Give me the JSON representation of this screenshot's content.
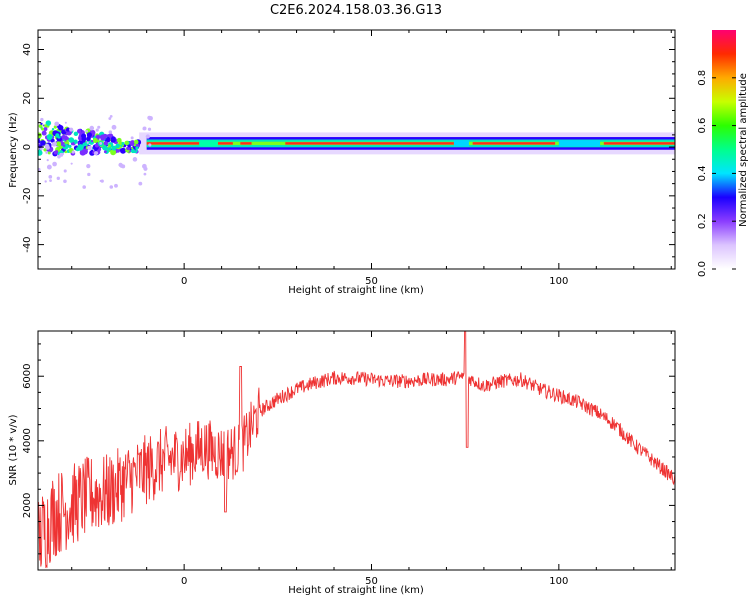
{
  "title": "C2E6.2024.158.03.36.G13",
  "chart_data": [
    {
      "type": "heatmap",
      "xlabel": "Height of straight line (km)",
      "ylabel": "Frequency (Hz)",
      "xlim": [
        -39,
        131
      ],
      "ylim": [
        -50,
        48
      ],
      "xticks": [
        0,
        50,
        100
      ],
      "yticks": [
        -40,
        -20,
        0,
        20,
        40
      ],
      "grid": false,
      "band": {
        "center_freq_hz": 1.5,
        "ridge_segments_km": [
          [
            -10,
            6
          ],
          [
            9,
            13
          ],
          [
            15,
            18
          ],
          [
            27,
            72
          ],
          [
            77,
            99
          ],
          [
            112,
            131
          ]
        ],
        "scatter_region_km": [
          -39,
          -12
        ]
      }
    },
    {
      "type": "line",
      "xlabel": "Height of straight line (km)",
      "ylabel": "SNR (10 * v/v)",
      "xlim": [
        -39,
        131
      ],
      "ylim": [
        0,
        7400
      ],
      "xticks": [
        0,
        50,
        100
      ],
      "yticks": [
        2000,
        4000,
        6000
      ],
      "grid": false,
      "color": "#ee3333",
      "x": [
        -39,
        -35,
        -30,
        -25,
        -20,
        -15,
        -10,
        -5,
        0,
        5,
        10,
        15,
        20,
        25,
        30,
        35,
        40,
        45,
        50,
        55,
        60,
        65,
        70,
        75,
        80,
        85,
        90,
        95,
        100,
        105,
        110,
        115,
        120,
        125,
        131
      ],
      "y": [
        900,
        1700,
        2000,
        2300,
        2400,
        2800,
        3100,
        3400,
        3500,
        3800,
        3600,
        3700,
        4900,
        5300,
        5600,
        5800,
        5950,
        5950,
        5900,
        5850,
        5850,
        5900,
        5900,
        6000,
        5700,
        5850,
        5900,
        5600,
        5400,
        5200,
        4900,
        4500,
        3900,
        3400,
        2800
      ]
    }
  ],
  "colorbar": {
    "label": "Normalized spectral amplitude",
    "ticks": [
      "0.0",
      "0.2",
      "0.4",
      "0.6",
      "0.8"
    ],
    "range": [
      0,
      1
    ],
    "colors": [
      "#ffffff",
      "#dcc4ff",
      "#8b3dff",
      "#1a00ff",
      "#00e5ff",
      "#00ff8c",
      "#2cff00",
      "#c8ff00",
      "#ffaa00",
      "#ff2a00",
      "#ff0070"
    ]
  }
}
